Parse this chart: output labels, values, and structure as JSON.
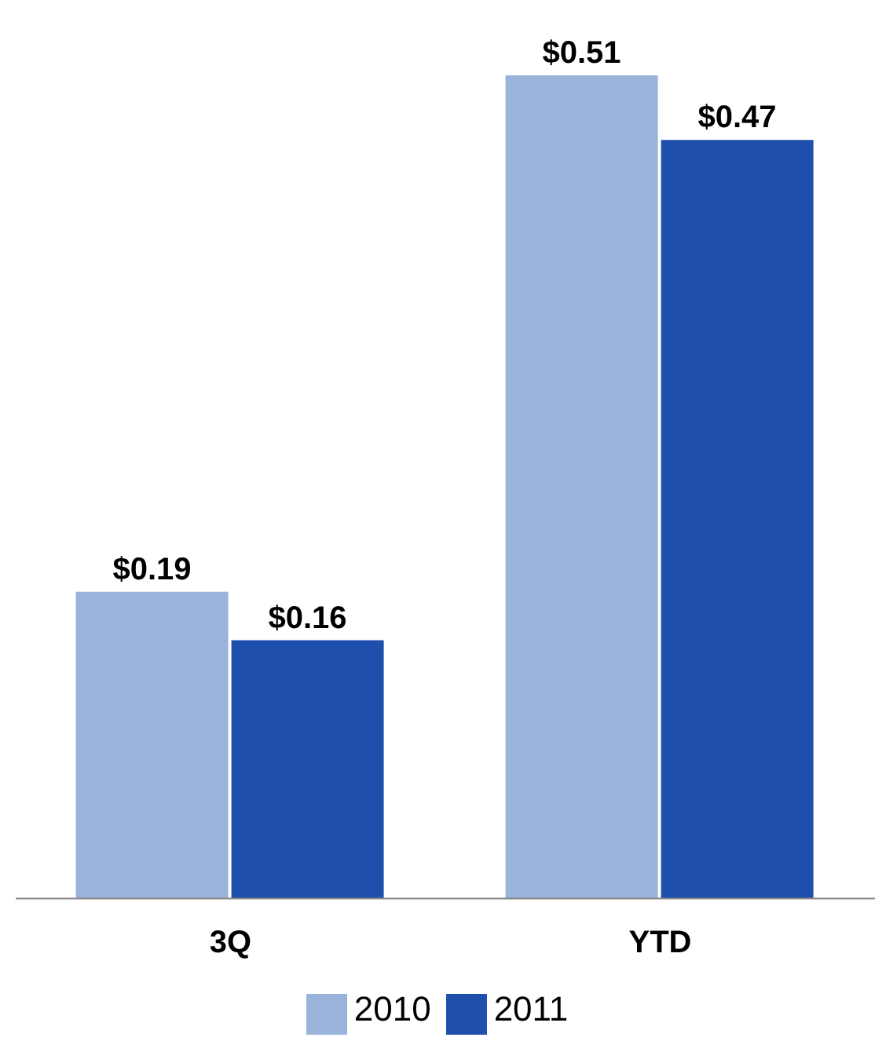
{
  "chart_data": {
    "type": "bar",
    "categories": [
      "3Q",
      "YTD"
    ],
    "series": [
      {
        "name": "2010",
        "color": "#99b3db",
        "values": [
          0.19,
          0.51
        ],
        "value_labels": [
          "$0.19",
          "$0.51"
        ]
      },
      {
        "name": "2011",
        "color": "#1f4fad",
        "values": [
          0.16,
          0.47
        ],
        "value_labels": [
          "$0.16",
          "$0.47"
        ]
      }
    ],
    "legend": "bottom"
  }
}
